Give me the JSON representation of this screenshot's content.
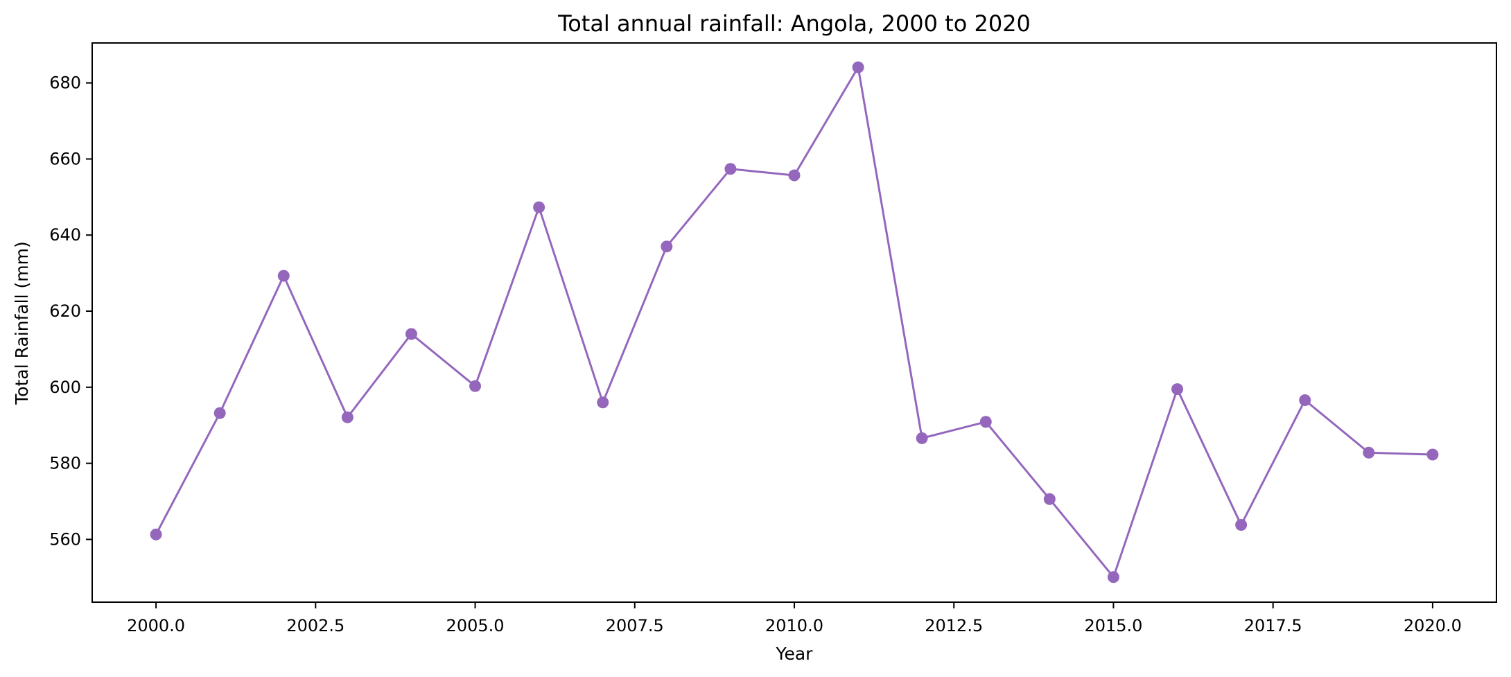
{
  "chart_data": {
    "type": "line",
    "title": "Total annual rainfall: Angola, 2000 to 2020",
    "xlabel": "Year",
    "ylabel": "Total Rainfall (mm)",
    "xlim": [
      1999.0,
      2021.0
    ],
    "ylim": [
      543.5,
      690.5
    ],
    "xticks": [
      2000.0,
      2002.5,
      2005.0,
      2007.5,
      2010.0,
      2012.5,
      2015.0,
      2017.5,
      2020.0
    ],
    "xtick_labels": [
      "2000.0",
      "2002.5",
      "2005.0",
      "2007.5",
      "2010.0",
      "2012.5",
      "2015.0",
      "2017.5",
      "2020.0"
    ],
    "yticks": [
      560,
      580,
      600,
      620,
      640,
      660,
      680
    ],
    "ytick_labels": [
      "560",
      "580",
      "600",
      "620",
      "640",
      "660",
      "680"
    ],
    "grid": false,
    "color": "#9467bd",
    "series": [
      {
        "x": [
          2000,
          2001,
          2002,
          2003,
          2004,
          2005,
          2006,
          2007,
          2008,
          2009,
          2010,
          2011,
          2012,
          2013,
          2014,
          2015,
          2016,
          2017,
          2018,
          2019,
          2020
        ],
        "values": [
          561.3,
          593.2,
          629.3,
          592.1,
          614.0,
          600.3,
          647.3,
          596.0,
          637.0,
          657.4,
          655.7,
          684.1,
          586.6,
          590.9,
          570.6,
          550.1,
          599.5,
          563.8,
          596.6,
          582.8,
          582.3
        ]
      }
    ]
  }
}
